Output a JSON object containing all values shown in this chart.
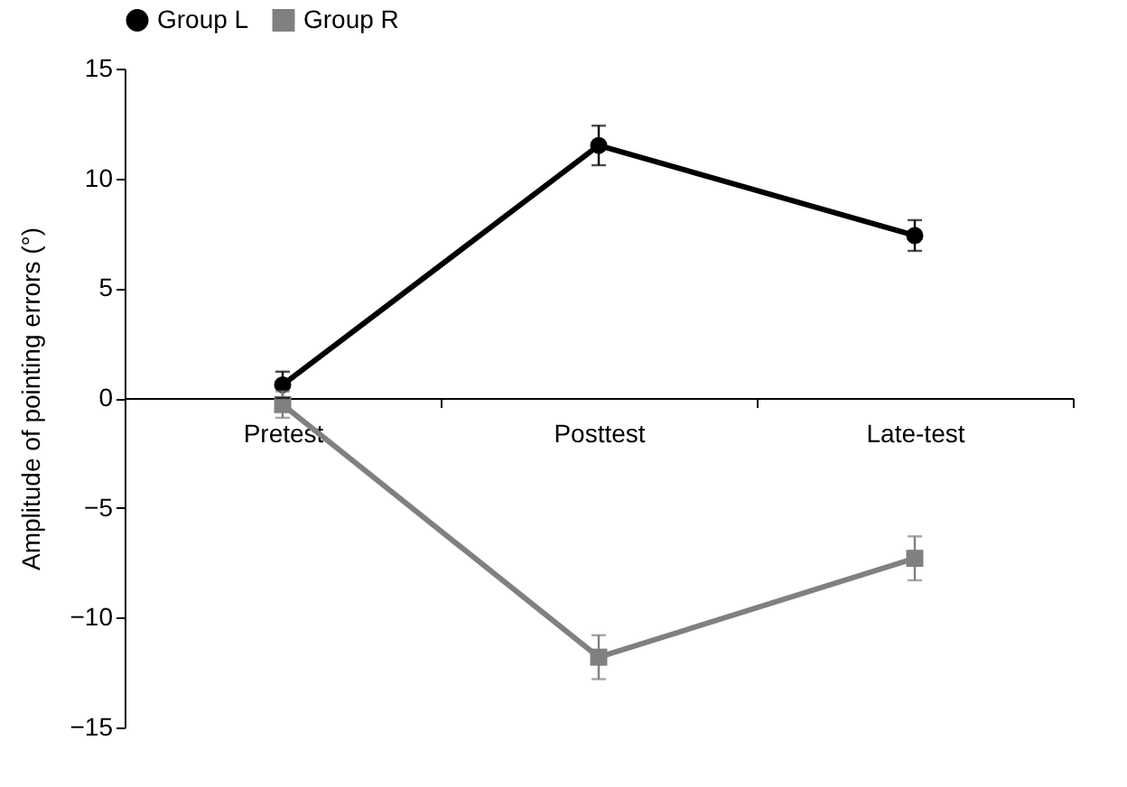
{
  "chart_data": {
    "type": "line",
    "ylabel": "Amplitude of pointing errors (°)",
    "categories": [
      "Pretest",
      "Posttest",
      "Late-test"
    ],
    "ylim": [
      -15,
      15
    ],
    "yticks": [
      15,
      10,
      5,
      0,
      -5,
      -10,
      -15
    ],
    "grid": false,
    "legend": "top",
    "line_style": "solid",
    "series": [
      {
        "name": "Group L",
        "color": "#000000",
        "marker": "circle",
        "values": [
          0.6,
          11.5,
          7.4
        ],
        "errors": [
          0.6,
          0.9,
          0.7
        ]
      },
      {
        "name": "Group R",
        "color": "#808080",
        "marker": "square",
        "values": [
          -0.3,
          -11.8,
          -7.3
        ],
        "errors": [
          0.6,
          1.0,
          1.0
        ]
      }
    ]
  }
}
